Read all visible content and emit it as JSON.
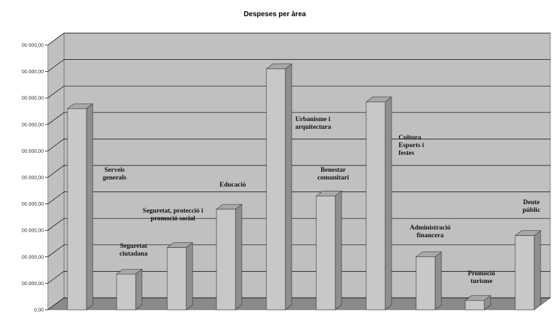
{
  "chart_data": {
    "type": "bar",
    "title": "Despeses per àrea",
    "xlabel": "",
    "ylabel": "",
    "ytick_labels": [
      "0,00",
      "00.000,00",
      "00.000,00",
      "00.000,00",
      "00.000,00",
      "00.000,00",
      "00.000,00",
      "00.000,00",
      "00.000,00",
      "00.000,00",
      "00.000,00"
    ],
    "ylim": [
      0,
      10
    ],
    "grid": true,
    "legend": "none",
    "categories": [
      "Serveis generals",
      "Seguretat ciutadana",
      "Seguretat, protecció i promoció social",
      "Educació",
      "Urbanisme i arquitectura",
      "Benestar comunitari",
      "Cultura Esports i festes",
      "Administració financera",
      "Promoció turisme",
      "Deute públic"
    ],
    "values": [
      7.6,
      1.35,
      2.35,
      3.8,
      9.1,
      4.3,
      7.85,
      2.0,
      0.35,
      2.8
    ],
    "colors": {
      "bar_front": "#c8c8c8",
      "bar_side": "#8f8f8f",
      "bar_top": "#a8a8a8",
      "wall": "#c0c0c0",
      "floor": "#8a8a8a",
      "grid": "#000000"
    }
  }
}
